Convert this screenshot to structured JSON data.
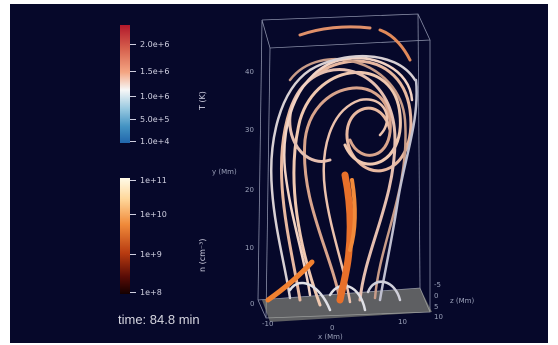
{
  "colorbars": {
    "temperature": {
      "ticks": [
        "2.0e+6",
        "1.5e+6",
        "1.0e+6",
        "5.0e+5",
        "1.0e+4"
      ],
      "label": "T (K)"
    },
    "density": {
      "ticks": [
        "1e+11",
        "1e+10",
        "1e+9",
        "1e+8"
      ],
      "label": "n (cm⁻³)"
    }
  },
  "time": "time: 84.8 min",
  "axes": {
    "z_axis_label": "y (Mm)",
    "x_axis_label": "x (Mm)",
    "y_axis_label": "z (Mm)",
    "z_ticks": [
      "40",
      "30",
      "20",
      "10",
      "0"
    ],
    "x_ticks": [
      "-10",
      "0",
      "10"
    ],
    "y_ticks": [
      "-5",
      "0",
      "5",
      "10"
    ]
  }
}
